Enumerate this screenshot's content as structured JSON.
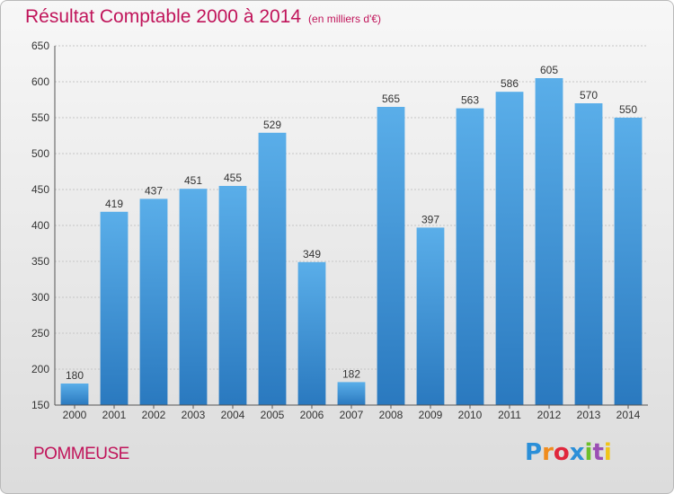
{
  "chart_data": {
    "type": "bar",
    "title": "Résultat Comptable 2000 à 2014",
    "subtitle": "(en milliers d'€)",
    "categories": [
      "2000",
      "2001",
      "2002",
      "2003",
      "2004",
      "2005",
      "2006",
      "2007",
      "2008",
      "2009",
      "2010",
      "2011",
      "2012",
      "2013",
      "2014"
    ],
    "values": [
      180,
      419,
      437,
      451,
      455,
      529,
      349,
      182,
      565,
      397,
      563,
      586,
      605,
      570,
      550
    ],
    "ylim": [
      150,
      650
    ],
    "yticks": [
      150,
      200,
      250,
      300,
      350,
      400,
      450,
      500,
      550,
      600,
      650
    ],
    "grid": true,
    "bar_color": "#3a8fd6"
  },
  "footer": {
    "commune": "POMMEUSE",
    "logo": "Proxiti"
  }
}
